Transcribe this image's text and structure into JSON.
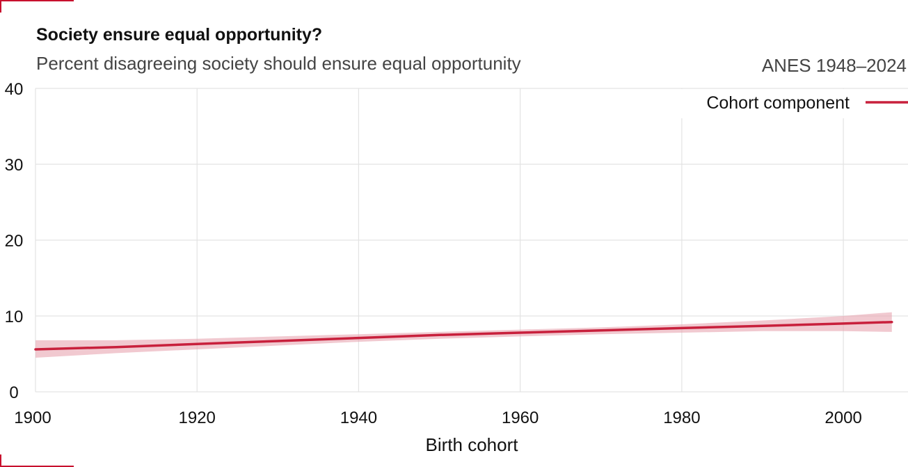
{
  "chart_data": {
    "type": "line",
    "title": "Society ensure equal opportunity?",
    "subtitle": "Percent disagreeing society should ensure equal opportunity",
    "source": "ANES 1948–2024",
    "xlabel": "Birth cohort",
    "ylabel": "",
    "xlim": [
      1900,
      2008
    ],
    "ylim": [
      0,
      40
    ],
    "xticks": [
      1900,
      1920,
      1940,
      1960,
      1980,
      2000
    ],
    "yticks": [
      0,
      10,
      20,
      30,
      40
    ],
    "grid": true,
    "legend_position": "top-right",
    "series": [
      {
        "name": "Cohort component",
        "color": "#c8203c",
        "band_color": "#e8a5b1",
        "x": [
          1900,
          1910,
          1920,
          1930,
          1940,
          1950,
          1960,
          1970,
          1980,
          1990,
          2000,
          2006
        ],
        "y": [
          5.6,
          5.9,
          6.3,
          6.7,
          7.1,
          7.5,
          7.8,
          8.1,
          8.4,
          8.7,
          9.0,
          9.2
        ],
        "lower": [
          4.5,
          5.1,
          5.6,
          6.1,
          6.6,
          7.0,
          7.3,
          7.6,
          7.8,
          8.0,
          8.0,
          7.9
        ],
        "upper": [
          6.8,
          6.8,
          7.0,
          7.3,
          7.6,
          7.9,
          8.2,
          8.5,
          8.9,
          9.4,
          10.0,
          10.5
        ]
      }
    ]
  }
}
